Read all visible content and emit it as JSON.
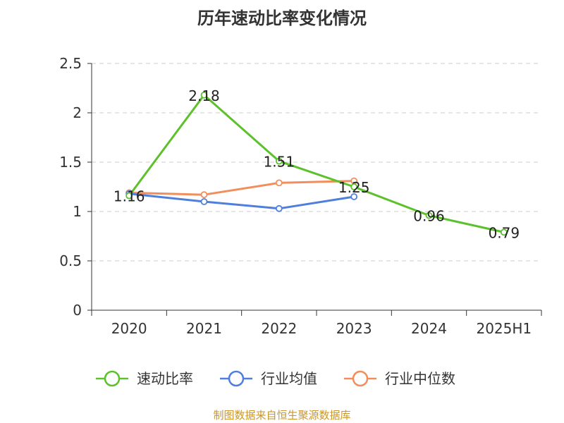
{
  "chart_data": {
    "type": "line",
    "title": "历年速动比率变化情况",
    "categories": [
      "2020",
      "2021",
      "2022",
      "2023",
      "2024",
      "2025H1"
    ],
    "y_ticks": [
      "0",
      "0.5",
      "1",
      "1.5",
      "2",
      "2.5"
    ],
    "ylim": [
      0,
      2.5
    ],
    "grid": true,
    "legend_position": "bottom",
    "series": [
      {
        "name": "速动比率",
        "color": "#5cc12a",
        "values": [
          1.16,
          2.18,
          1.51,
          1.25,
          0.96,
          0.79
        ],
        "labels": [
          "1.16",
          "2.18",
          "1.51",
          "1.25",
          "0.96",
          "0.79"
        ]
      },
      {
        "name": "行业均值",
        "color": "#4f7fdc",
        "values": [
          1.18,
          1.1,
          1.03,
          1.15,
          null,
          null
        ]
      },
      {
        "name": "行业中位数",
        "color": "#f28e5c",
        "values": [
          1.19,
          1.17,
          1.29,
          1.31,
          null,
          null
        ]
      }
    ]
  },
  "footer": {
    "source": "制图数据来自恒生聚源数据库"
  }
}
